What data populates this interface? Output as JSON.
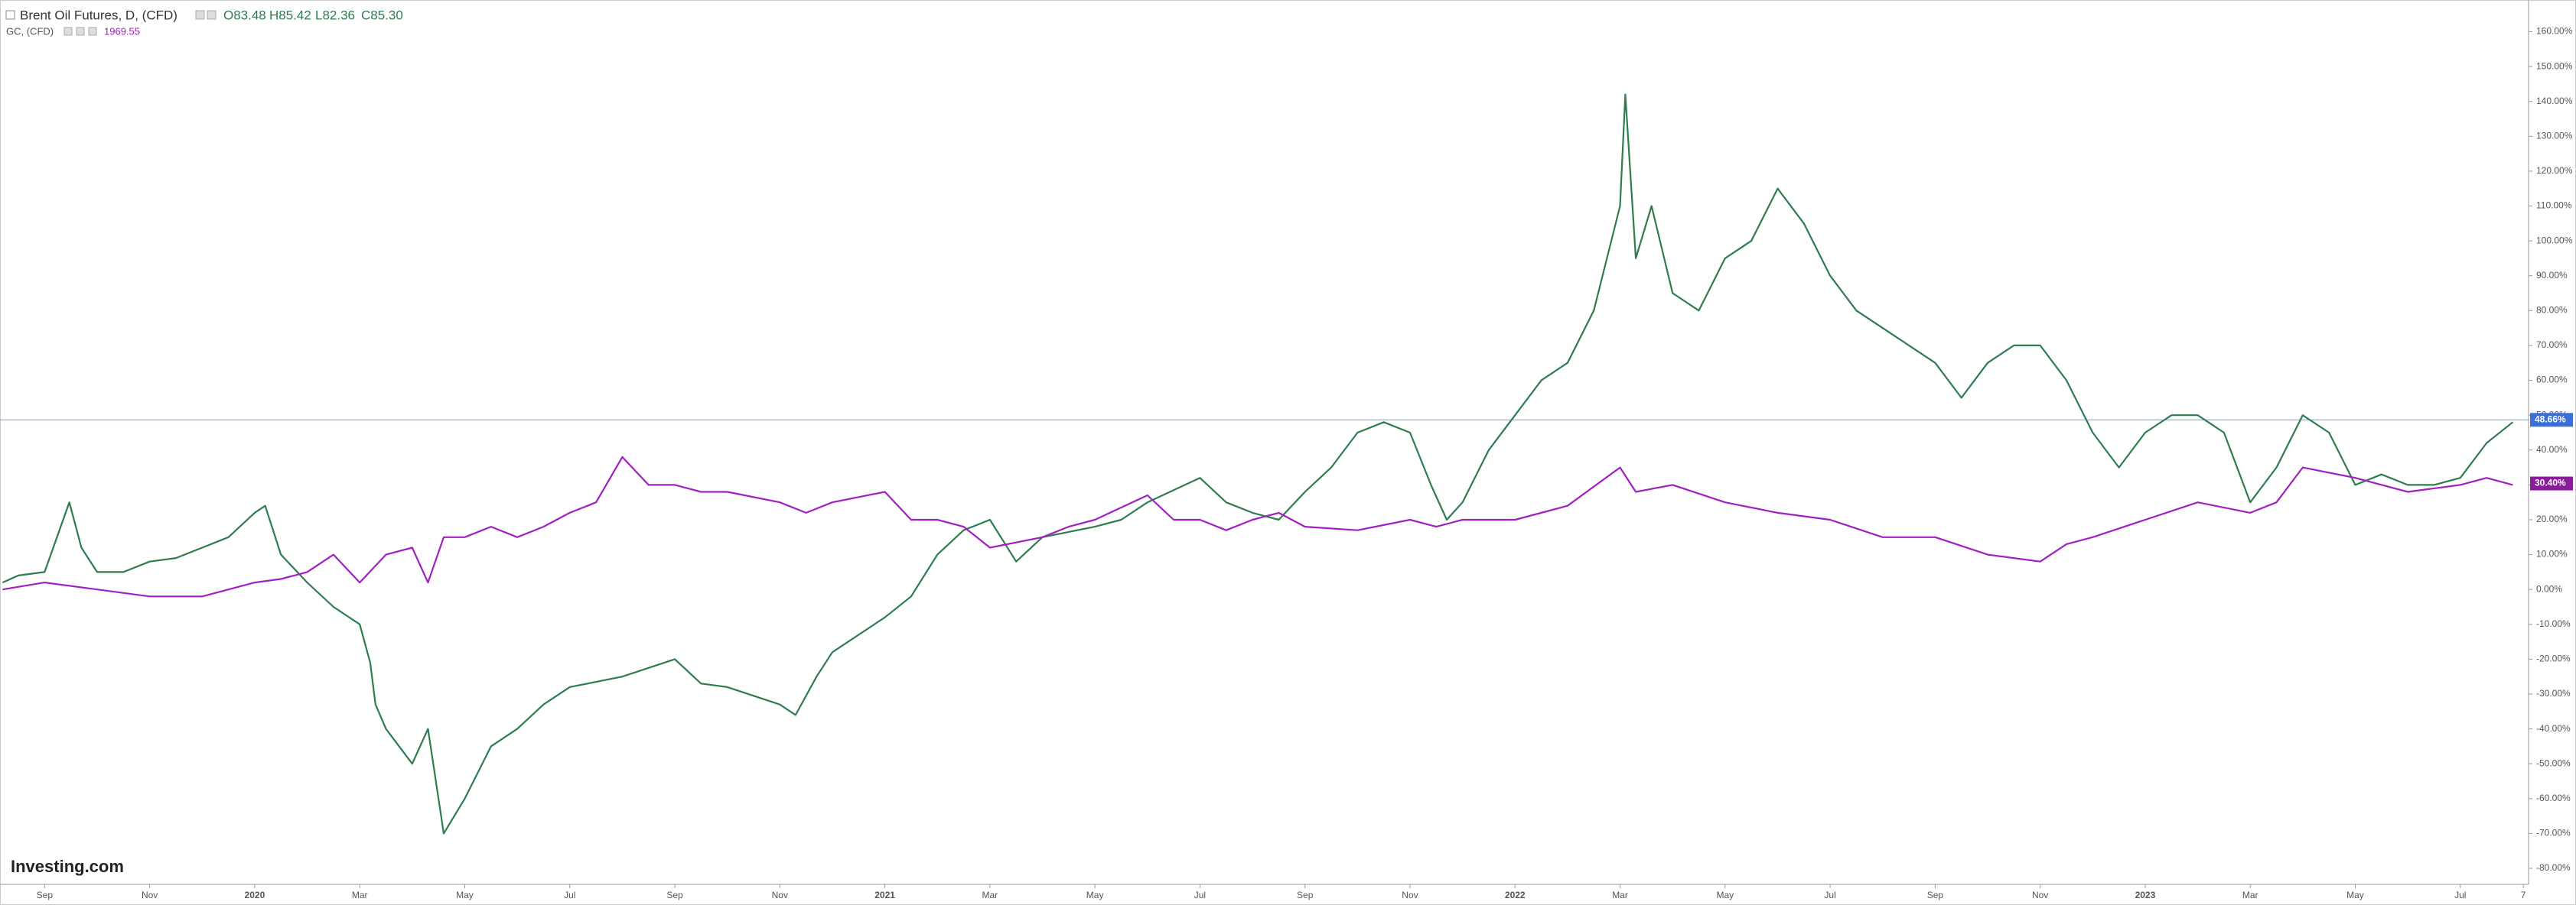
{
  "chart_data": {
    "type": "line",
    "header": {
      "ohlc": [
        "O83.48",
        "H85.42",
        "L82.36",
        "C85.30"
      ],
      "second_value": "1969.55"
    },
    "logo": "Investing.com",
    "series": [
      {
        "name": "Brent Oil Futures, D, (CFD)",
        "color": "#2e7d4f",
        "x": [
          -0.8,
          -0.5,
          0,
          0.47,
          0.7,
          1,
          1.5,
          2,
          2.5,
          3,
          3.5,
          4,
          4.2,
          4.5,
          5,
          5.5,
          6,
          6.2,
          6.3,
          6.5,
          7,
          7.3,
          7.6,
          8,
          8.5,
          9,
          9.5,
          10,
          11,
          12,
          12.5,
          13,
          14,
          14.3,
          14.7,
          15,
          16,
          16.5,
          17,
          17.5,
          18,
          18.5,
          19,
          20,
          20.5,
          21,
          22,
          22.5,
          23,
          23.5,
          24,
          24.5,
          25,
          25.5,
          26,
          26.4,
          26.7,
          27,
          27.5,
          28,
          28.5,
          29,
          29.5,
          30,
          30.1,
          30.3,
          30.6,
          31,
          31.5,
          32,
          32.5,
          33,
          33.5,
          34,
          34.5,
          35,
          35.5,
          36,
          36.5,
          37,
          37.5,
          38,
          38.5,
          39,
          39.5,
          40,
          40.5,
          41,
          41.5,
          42,
          42.5,
          43,
          43.5,
          44,
          44.5,
          45,
          45.5,
          46,
          46.5,
          47
        ],
        "values": [
          2,
          4,
          5,
          25,
          12,
          5,
          5,
          8,
          9,
          12,
          15,
          22,
          24,
          10,
          2,
          -5,
          -10,
          -21,
          -33,
          -40,
          -50,
          -40,
          -70,
          -60,
          -45,
          -40,
          -33,
          -28,
          -25,
          -20,
          -27,
          -28,
          -33,
          -36,
          -25,
          -18,
          -8,
          -2,
          10,
          17,
          20,
          8,
          15,
          18,
          20,
          25,
          32,
          25,
          22,
          20,
          28,
          35,
          45,
          48,
          45,
          30,
          20,
          25,
          40,
          50,
          60,
          65,
          80,
          110,
          142,
          95,
          110,
          85,
          80,
          95,
          100,
          115,
          105,
          90,
          80,
          75,
          70,
          65,
          55,
          65,
          70,
          70,
          60,
          45,
          35,
          45,
          50,
          50,
          45,
          25,
          35,
          50,
          45,
          30,
          33,
          30,
          30,
          32,
          42,
          48
        ],
        "last": {
          "value": 48.66,
          "label": "48.66%"
        },
        "last_color": "#3b6fd8"
      },
      {
        "name": "GC, (CFD)",
        "color": "#a020c0",
        "x": [
          -0.8,
          0,
          1,
          2,
          3,
          3.5,
          4,
          4.5,
          5,
          5.5,
          6,
          6.5,
          7,
          7.3,
          7.6,
          8,
          8.5,
          9,
          9.5,
          10,
          10.5,
          11,
          11.5,
          12,
          12.5,
          13,
          14,
          14.5,
          15,
          16,
          16.5,
          17,
          17.5,
          18,
          19,
          19.5,
          20,
          21,
          21.5,
          22,
          22.5,
          23,
          23.5,
          24,
          25,
          26,
          26.5,
          27,
          28,
          29,
          30,
          30.3,
          31,
          32,
          33,
          34,
          35,
          36,
          37,
          38,
          38.5,
          39,
          40,
          41,
          42,
          42.5,
          43,
          44,
          45,
          46,
          46.5,
          47
        ],
        "values": [
          0,
          2,
          0,
          -2,
          -2,
          0,
          2,
          3,
          5,
          10,
          2,
          10,
          12,
          2,
          15,
          15,
          18,
          15,
          18,
          22,
          25,
          38,
          30,
          30,
          28,
          28,
          25,
          22,
          25,
          28,
          20,
          20,
          18,
          12,
          15,
          18,
          20,
          27,
          20,
          20,
          17,
          20,
          22,
          18,
          17,
          20,
          18,
          20,
          20,
          24,
          35,
          28,
          30,
          25,
          22,
          20,
          15,
          15,
          10,
          8,
          13,
          15,
          20,
          25,
          22,
          25,
          35,
          32,
          28,
          30,
          32,
          30
        ],
        "last": {
          "value": 30.4,
          "label": "30.40%"
        },
        "last_color": "#8a1a9e"
      }
    ],
    "xlim": [
      -0.85,
      47.3
    ],
    "xticks": [
      {
        "value": 0,
        "label": "Sep"
      },
      {
        "value": 2,
        "label": "Nov"
      },
      {
        "value": 4,
        "label": "2020"
      },
      {
        "value": 6,
        "label": "Mar"
      },
      {
        "value": 8,
        "label": "May"
      },
      {
        "value": 10,
        "label": "Jul"
      },
      {
        "value": 12,
        "label": "Sep"
      },
      {
        "value": 14,
        "label": "Nov"
      },
      {
        "value": 16,
        "label": "2021"
      },
      {
        "value": 18,
        "label": "Mar"
      },
      {
        "value": 20,
        "label": "May"
      },
      {
        "value": 22,
        "label": "Jul"
      },
      {
        "value": 24,
        "label": "Sep"
      },
      {
        "value": 26,
        "label": "Nov"
      },
      {
        "value": 28,
        "label": "2022"
      },
      {
        "value": 30,
        "label": "Mar"
      },
      {
        "value": 32,
        "label": "May"
      },
      {
        "value": 34,
        "label": "Jul"
      },
      {
        "value": 36,
        "label": "Sep"
      },
      {
        "value": 38,
        "label": "Nov"
      },
      {
        "value": 40,
        "label": "2023"
      },
      {
        "value": 42,
        "label": "Mar"
      },
      {
        "value": 44,
        "label": "May"
      },
      {
        "value": 46,
        "label": "Jul"
      },
      {
        "value": 47.2,
        "label": "7"
      }
    ],
    "ylim": [
      -84.6,
      169.1
    ],
    "yticks": [
      {
        "value": -80,
        "label": "-80.00%"
      },
      {
        "value": -70,
        "label": "-70.00%"
      },
      {
        "value": -60,
        "label": "-60.00%"
      },
      {
        "value": -50,
        "label": "-50.00%"
      },
      {
        "value": -40,
        "label": "-40.00%"
      },
      {
        "value": -30,
        "label": "-30.00%"
      },
      {
        "value": -20,
        "label": "-20.00%"
      },
      {
        "value": -10,
        "label": "-10.00%"
      },
      {
        "value": 0,
        "label": "0.00%"
      },
      {
        "value": 10,
        "label": "10.00%"
      },
      {
        "value": 20,
        "label": "20.00%"
      },
      {
        "value": 30,
        "label": "30.00%"
      },
      {
        "value": 40,
        "label": "40.00%"
      },
      {
        "value": 50,
        "label": "50.00%"
      },
      {
        "value": 60,
        "label": "60.00%"
      },
      {
        "value": 70,
        "label": "70.00%"
      },
      {
        "value": 80,
        "label": "80.00%"
      },
      {
        "value": 90,
        "label": "90.00%"
      },
      {
        "value": 100,
        "label": "100.00%"
      },
      {
        "value": 110,
        "label": "110.00%"
      },
      {
        "value": 120,
        "label": "120.00%"
      },
      {
        "value": 130,
        "label": "130.00%"
      },
      {
        "value": 140,
        "label": "140.00%"
      },
      {
        "value": 150,
        "label": "150.00%"
      },
      {
        "value": 160,
        "label": "160.00%"
      }
    ],
    "grid": false
  }
}
